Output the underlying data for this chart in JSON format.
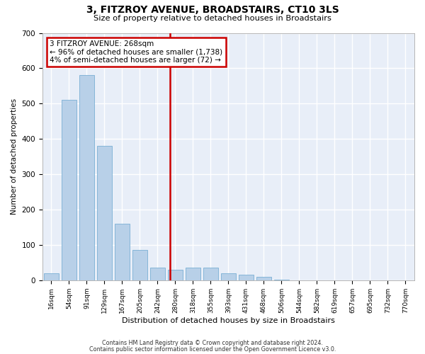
{
  "title": "3, FITZROY AVENUE, BROADSTAIRS, CT10 3LS",
  "subtitle": "Size of property relative to detached houses in Broadstairs",
  "xlabel": "Distribution of detached houses by size in Broadstairs",
  "ylabel": "Number of detached properties",
  "footnote1": "Contains HM Land Registry data © Crown copyright and database right 2024.",
  "footnote2": "Contains public sector information licensed under the Open Government Licence v3.0.",
  "bar_color": "#b8d0e8",
  "bar_edge_color": "#7aafd4",
  "background_color": "#e8eef8",
  "grid_color": "#ffffff",
  "property_line_color": "#cc0000",
  "annotation_box_color": "#cc0000",
  "categories": [
    "16sqm",
    "54sqm",
    "91sqm",
    "129sqm",
    "167sqm",
    "205sqm",
    "242sqm",
    "280sqm",
    "318sqm",
    "355sqm",
    "393sqm",
    "431sqm",
    "468sqm",
    "506sqm",
    "544sqm",
    "582sqm",
    "619sqm",
    "657sqm",
    "695sqm",
    "732sqm",
    "770sqm"
  ],
  "values": [
    20,
    510,
    580,
    380,
    160,
    85,
    35,
    30,
    35,
    35,
    20,
    15,
    10,
    2,
    0,
    0,
    0,
    0,
    0,
    0,
    0
  ],
  "ylim": [
    0,
    700
  ],
  "yticks": [
    0,
    100,
    200,
    300,
    400,
    500,
    600,
    700
  ],
  "annotation_line1": "3 FITZROY AVENUE: 268sqm",
  "annotation_line2": "← 96% of detached houses are smaller (1,738)",
  "annotation_line3": "4% of semi-detached houses are larger (72) →",
  "property_line_x": 6.684,
  "figwidth": 6.0,
  "figheight": 5.0,
  "dpi": 100
}
